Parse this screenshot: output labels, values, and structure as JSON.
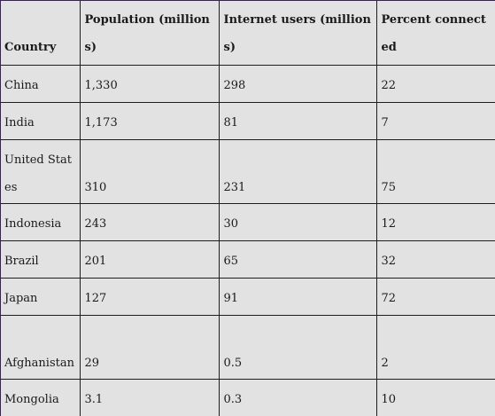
{
  "table": {
    "headers": [
      "Country",
      "Population (millions)",
      "Internet users (millions)",
      "Percent connected"
    ],
    "rows": [
      [
        "China",
        "1,330",
        "298",
        "22"
      ],
      [
        "India",
        "1,173",
        "81",
        "7"
      ],
      [
        "United States",
        "310",
        "231",
        "75"
      ],
      [
        "Indonesia",
        "243",
        "30",
        "12"
      ],
      [
        "Brazil",
        "201",
        "65",
        "32"
      ],
      [
        "Japan",
        "127",
        "91",
        "72"
      ],
      [
        "Afghanistan",
        "29",
        "0.5",
        "2"
      ],
      [
        "Mongolia",
        "3.1",
        "0.3",
        "10"
      ]
    ]
  }
}
